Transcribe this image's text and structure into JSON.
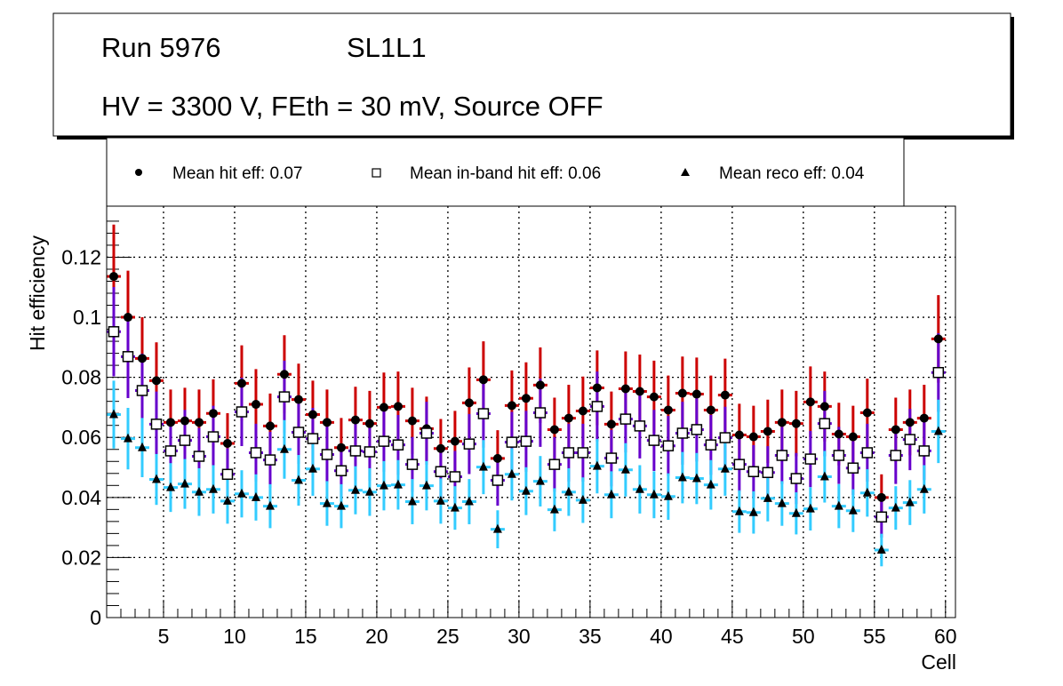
{
  "title_box": {
    "run": "Run 5976",
    "layer": "SL1L1",
    "conditions": "HV = 3300 V, FEth = 30 mV, Source OFF"
  },
  "legend": {
    "hit": "Mean hit  eff: 0.07",
    "inband": "Mean in-band hit eff: 0.06",
    "reco": "Mean reco eff: 0.04"
  },
  "chart_data": {
    "type": "scatter",
    "xlabel": "Cell",
    "ylabel": "Hit efficiency",
    "xlim": [
      1,
      60.7
    ],
    "ylim": [
      0,
      0.137
    ],
    "grid": true,
    "legend_position": "top",
    "x_ticks": [
      "5",
      "10",
      "15",
      "20",
      "25",
      "30",
      "35",
      "40",
      "45",
      "50",
      "55",
      "60"
    ],
    "y_ticks": [
      "0",
      "0.02",
      "0.04",
      "0.06",
      "0.08",
      "0.1",
      "0.12"
    ],
    "x": [
      1.5,
      2.5,
      3.5,
      4.5,
      5.5,
      6.5,
      7.5,
      8.5,
      9.5,
      10.5,
      11.5,
      12.5,
      13.5,
      14.5,
      15.5,
      16.5,
      17.5,
      18.5,
      19.5,
      20.5,
      21.5,
      22.5,
      23.5,
      24.5,
      25.5,
      26.5,
      27.5,
      28.5,
      29.5,
      30.5,
      31.5,
      32.5,
      33.5,
      34.5,
      35.5,
      36.5,
      37.5,
      38.5,
      39.5,
      40.5,
      41.5,
      42.5,
      43.5,
      44.5,
      45.5,
      46.5,
      47.5,
      48.5,
      49.5,
      50.5,
      51.5,
      52.5,
      53.5,
      54.5,
      55.5,
      56.5,
      57.5,
      58.5,
      59.5
    ],
    "series": [
      {
        "name": "Mean hit  eff",
        "color": "#cc0000",
        "marker": "circle",
        "values": [
          0.1136,
          0.1,
          0.0863,
          0.0789,
          0.065,
          0.0655,
          0.065,
          0.068,
          0.058,
          0.078,
          0.071,
          0.0638,
          0.081,
          0.0726,
          0.0676,
          0.065,
          0.0566,
          0.0658,
          0.0646,
          0.07,
          0.0703,
          0.0655,
          0.0629,
          0.0563,
          0.0587,
          0.0715,
          0.0792,
          0.053,
          0.0706,
          0.073,
          0.0774,
          0.0626,
          0.0664,
          0.0688,
          0.0765,
          0.0644,
          0.0762,
          0.0753,
          0.0735,
          0.0691,
          0.0747,
          0.0744,
          0.0691,
          0.0741,
          0.0608,
          0.0602,
          0.062,
          0.065,
          0.0646,
          0.0718,
          0.0703,
          0.0611,
          0.0602,
          0.0682,
          0.04,
          0.0626,
          0.065,
          0.0664,
          0.0928
        ]
      },
      {
        "name": "Mean in-band hit eff",
        "color": "#6600cc",
        "marker": "open-square",
        "values": [
          0.0952,
          0.0869,
          0.0756,
          0.0644,
          0.0555,
          0.059,
          0.0537,
          0.0602,
          0.0477,
          0.0685,
          0.0549,
          0.0525,
          0.0735,
          0.0617,
          0.0596,
          0.0543,
          0.0489,
          0.0555,
          0.0552,
          0.0587,
          0.0575,
          0.051,
          0.0614,
          0.0486,
          0.0469,
          0.0578,
          0.0679,
          0.0457,
          0.0584,
          0.0587,
          0.0682,
          0.051,
          0.0549,
          0.0549,
          0.0703,
          0.0531,
          0.0661,
          0.0638,
          0.059,
          0.0572,
          0.0614,
          0.0626,
          0.0575,
          0.0599,
          0.051,
          0.0486,
          0.0483,
          0.054,
          0.0463,
          0.0528,
          0.0646,
          0.054,
          0.0498,
          0.0549,
          0.0335,
          0.054,
          0.0593,
          0.0555,
          0.0816
        ]
      },
      {
        "name": "Mean reco eff",
        "color": "#33ccff",
        "marker": "triangle",
        "values": [
          0.0676,
          0.0596,
          0.0566,
          0.046,
          0.0433,
          0.0445,
          0.0418,
          0.0427,
          0.0388,
          0.0412,
          0.04,
          0.0371,
          0.056,
          0.0457,
          0.0495,
          0.038,
          0.0371,
          0.0424,
          0.0418,
          0.0439,
          0.0442,
          0.0386,
          0.0439,
          0.0388,
          0.0365,
          0.0386,
          0.0501,
          0.0294,
          0.0477,
          0.0421,
          0.0454,
          0.0359,
          0.0418,
          0.0391,
          0.0504,
          0.0409,
          0.0492,
          0.0427,
          0.0409,
          0.0403,
          0.0466,
          0.0463,
          0.0442,
          0.0495,
          0.0353,
          0.035,
          0.0397,
          0.038,
          0.0347,
          0.0362,
          0.0469,
          0.0371,
          0.0356,
          0.0415,
          0.0225,
          0.0365,
          0.0383,
          0.0427,
          0.062
        ]
      }
    ]
  }
}
